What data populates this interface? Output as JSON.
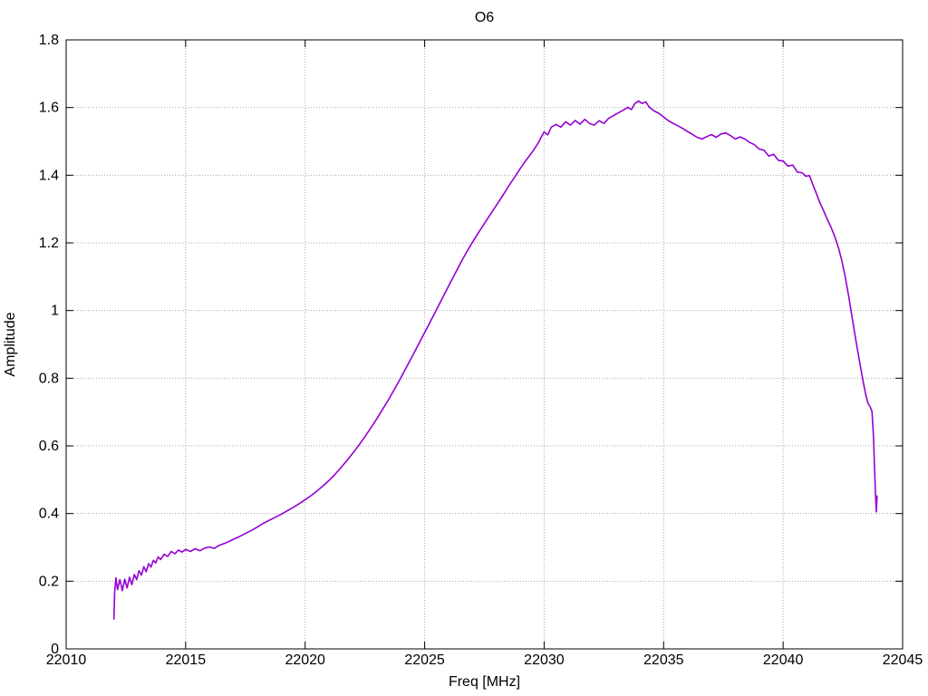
{
  "window": {
    "background": "#ffffff"
  },
  "chart_data": {
    "type": "line",
    "title": "O6",
    "xlabel": "Freq [MHz]",
    "ylabel": "Amplitude",
    "xlim": [
      22010,
      22045
    ],
    "ylim": [
      0,
      1.8
    ],
    "xticks": [
      22010,
      22015,
      22020,
      22025,
      22030,
      22035,
      22040,
      22045
    ],
    "xtick_labels": [
      "22010",
      "22015",
      "22020",
      "22025",
      "22030",
      "22035",
      "22040",
      "22045"
    ],
    "yticks": [
      0,
      0.2,
      0.4,
      0.6,
      0.8,
      1.0,
      1.2,
      1.4,
      1.6,
      1.8
    ],
    "ytick_labels": [
      "0",
      "0.2",
      "0.4",
      "0.6",
      "0.8",
      "1",
      "1.2",
      "1.4",
      "1.6",
      "1.8"
    ],
    "grid": true,
    "grid_style": "dotted",
    "legend": "none",
    "colors": {
      "line": "#9400d3",
      "grid": "#a8a8a8",
      "axis": "#000000",
      "text": "#000000"
    },
    "series": [
      {
        "name": "O6",
        "points": [
          [
            22012.0,
            0.088
          ],
          [
            22012.03,
            0.168
          ],
          [
            22012.08,
            0.21
          ],
          [
            22012.15,
            0.175
          ],
          [
            22012.25,
            0.205
          ],
          [
            22012.35,
            0.172
          ],
          [
            22012.45,
            0.206
          ],
          [
            22012.55,
            0.18
          ],
          [
            22012.65,
            0.212
          ],
          [
            22012.75,
            0.19
          ],
          [
            22012.85,
            0.22
          ],
          [
            22012.95,
            0.205
          ],
          [
            22013.05,
            0.231
          ],
          [
            22013.15,
            0.218
          ],
          [
            22013.25,
            0.243
          ],
          [
            22013.35,
            0.228
          ],
          [
            22013.45,
            0.252
          ],
          [
            22013.55,
            0.242
          ],
          [
            22013.65,
            0.262
          ],
          [
            22013.75,
            0.254
          ],
          [
            22013.85,
            0.272
          ],
          [
            22013.95,
            0.264
          ],
          [
            22014.1,
            0.28
          ],
          [
            22014.25,
            0.273
          ],
          [
            22014.4,
            0.288
          ],
          [
            22014.55,
            0.281
          ],
          [
            22014.7,
            0.292
          ],
          [
            22014.85,
            0.286
          ],
          [
            22015.0,
            0.294
          ],
          [
            22015.2,
            0.288
          ],
          [
            22015.4,
            0.296
          ],
          [
            22015.6,
            0.29
          ],
          [
            22015.8,
            0.298
          ],
          [
            22016.0,
            0.301
          ],
          [
            22016.2,
            0.297
          ],
          [
            22016.4,
            0.306
          ],
          [
            22016.6,
            0.311
          ],
          [
            22016.8,
            0.317
          ],
          [
            22017.0,
            0.324
          ],
          [
            22017.25,
            0.332
          ],
          [
            22017.5,
            0.341
          ],
          [
            22017.75,
            0.35
          ],
          [
            22018.0,
            0.36
          ],
          [
            22018.25,
            0.371
          ],
          [
            22018.5,
            0.38
          ],
          [
            22018.75,
            0.389
          ],
          [
            22019.0,
            0.398
          ],
          [
            22019.25,
            0.408
          ],
          [
            22019.5,
            0.418
          ],
          [
            22019.75,
            0.429
          ],
          [
            22020.0,
            0.441
          ],
          [
            22020.25,
            0.453
          ],
          [
            22020.5,
            0.467
          ],
          [
            22020.75,
            0.482
          ],
          [
            22021.0,
            0.498
          ],
          [
            22021.25,
            0.516
          ],
          [
            22021.5,
            0.536
          ],
          [
            22021.75,
            0.557
          ],
          [
            22022.0,
            0.579
          ],
          [
            22022.25,
            0.602
          ],
          [
            22022.5,
            0.627
          ],
          [
            22022.75,
            0.653
          ],
          [
            22023.0,
            0.68
          ],
          [
            22023.25,
            0.709
          ],
          [
            22023.5,
            0.738
          ],
          [
            22023.75,
            0.769
          ],
          [
            22024.0,
            0.801
          ],
          [
            22024.25,
            0.834
          ],
          [
            22024.5,
            0.867
          ],
          [
            22024.75,
            0.901
          ],
          [
            22025.0,
            0.935
          ],
          [
            22025.25,
            0.969
          ],
          [
            22025.5,
            1.003
          ],
          [
            22025.75,
            1.038
          ],
          [
            22026.0,
            1.072
          ],
          [
            22026.25,
            1.106
          ],
          [
            22026.5,
            1.14
          ],
          [
            22026.75,
            1.172
          ],
          [
            22027.0,
            1.202
          ],
          [
            22027.25,
            1.23
          ],
          [
            22027.5,
            1.257
          ],
          [
            22027.75,
            1.284
          ],
          [
            22028.0,
            1.311
          ],
          [
            22028.25,
            1.338
          ],
          [
            22028.5,
            1.366
          ],
          [
            22028.75,
            1.393
          ],
          [
            22029.0,
            1.42
          ],
          [
            22029.25,
            1.445
          ],
          [
            22029.5,
            1.468
          ],
          [
            22029.75,
            1.495
          ],
          [
            22030.0,
            1.528
          ],
          [
            22030.15,
            1.519
          ],
          [
            22030.3,
            1.542
          ],
          [
            22030.5,
            1.55
          ],
          [
            22030.7,
            1.542
          ],
          [
            22030.9,
            1.558
          ],
          [
            22031.1,
            1.548
          ],
          [
            22031.3,
            1.562
          ],
          [
            22031.5,
            1.551
          ],
          [
            22031.7,
            1.565
          ],
          [
            22031.9,
            1.553
          ],
          [
            22032.1,
            1.548
          ],
          [
            22032.3,
            1.561
          ],
          [
            22032.5,
            1.553
          ],
          [
            22032.7,
            1.568
          ],
          [
            22032.9,
            1.576
          ],
          [
            22033.1,
            1.584
          ],
          [
            22033.3,
            1.592
          ],
          [
            22033.5,
            1.601
          ],
          [
            22033.65,
            1.594
          ],
          [
            22033.8,
            1.612
          ],
          [
            22033.95,
            1.619
          ],
          [
            22034.1,
            1.612
          ],
          [
            22034.25,
            1.617
          ],
          [
            22034.4,
            1.601
          ],
          [
            22034.6,
            1.59
          ],
          [
            22034.8,
            1.583
          ],
          [
            22035.0,
            1.572
          ],
          [
            22035.2,
            1.561
          ],
          [
            22035.4,
            1.553
          ],
          [
            22035.6,
            1.546
          ],
          [
            22035.8,
            1.538
          ],
          [
            22036.0,
            1.529
          ],
          [
            22036.2,
            1.521
          ],
          [
            22036.4,
            1.512
          ],
          [
            22036.6,
            1.507
          ],
          [
            22036.8,
            1.514
          ],
          [
            22037.0,
            1.52
          ],
          [
            22037.2,
            1.512
          ],
          [
            22037.4,
            1.522
          ],
          [
            22037.6,
            1.525
          ],
          [
            22037.8,
            1.517
          ],
          [
            22038.0,
            1.507
          ],
          [
            22038.2,
            1.513
          ],
          [
            22038.4,
            1.507
          ],
          [
            22038.6,
            1.497
          ],
          [
            22038.8,
            1.49
          ],
          [
            22039.0,
            1.477
          ],
          [
            22039.2,
            1.474
          ],
          [
            22039.4,
            1.457
          ],
          [
            22039.6,
            1.462
          ],
          [
            22039.8,
            1.444
          ],
          [
            22040.0,
            1.442
          ],
          [
            22040.2,
            1.427
          ],
          [
            22040.4,
            1.43
          ],
          [
            22040.6,
            1.409
          ],
          [
            22040.8,
            1.407
          ],
          [
            22040.95,
            1.397
          ],
          [
            22041.1,
            1.399
          ],
          [
            22041.25,
            1.371
          ],
          [
            22041.4,
            1.344
          ],
          [
            22041.55,
            1.317
          ],
          [
            22041.7,
            1.294
          ],
          [
            22041.85,
            1.269
          ],
          [
            22042.0,
            1.247
          ],
          [
            22042.15,
            1.221
          ],
          [
            22042.3,
            1.189
          ],
          [
            22042.45,
            1.149
          ],
          [
            22042.6,
            1.099
          ],
          [
            22042.75,
            1.039
          ],
          [
            22042.9,
            0.974
          ],
          [
            22043.05,
            0.909
          ],
          [
            22043.2,
            0.849
          ],
          [
            22043.35,
            0.789
          ],
          [
            22043.45,
            0.754
          ],
          [
            22043.55,
            0.726
          ],
          [
            22043.65,
            0.714
          ],
          [
            22043.72,
            0.702
          ],
          [
            22043.78,
            0.63
          ],
          [
            22043.82,
            0.545
          ],
          [
            22043.86,
            0.468
          ],
          [
            22043.88,
            0.432
          ],
          [
            22043.9,
            0.405
          ],
          [
            22043.93,
            0.452
          ]
        ]
      }
    ]
  }
}
